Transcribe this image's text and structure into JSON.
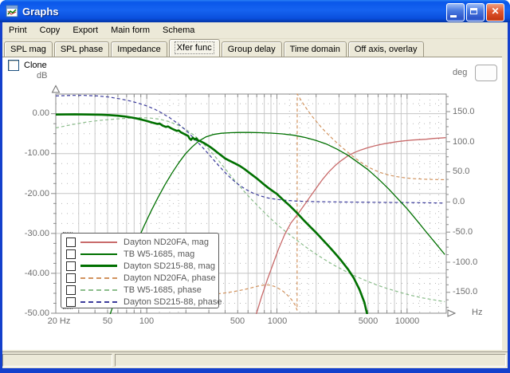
{
  "window": {
    "title": "Graphs"
  },
  "menu": {
    "items": [
      "Print",
      "Copy",
      "Export",
      "Main form",
      "Schema"
    ]
  },
  "tabs": {
    "items": [
      "SPL mag",
      "SPL phase",
      "Impedance",
      "Xfer func",
      "Group delay",
      "Time domain",
      "Off axis, overlay"
    ],
    "selected": "Xfer func",
    "selected_index": 3
  },
  "controls": {
    "clone_label": "Clone",
    "clone_checked": false
  },
  "chart_data": {
    "type": "line",
    "x_axis": {
      "unit": "Hz",
      "scale": "log",
      "min": 20,
      "max": 20000,
      "ticks": [
        {
          "label": "20 Hz",
          "value": 20
        },
        {
          "label": "50",
          "value": 50
        },
        {
          "label": "100",
          "value": 100
        },
        {
          "label": "500",
          "value": 500
        },
        {
          "label": "1000",
          "value": 1000
        },
        {
          "label": "5000",
          "value": 5000
        },
        {
          "label": "10000",
          "value": 10000
        }
      ]
    },
    "y_axis_left": {
      "unit": "dB",
      "range": [
        5,
        -50
      ],
      "ticks": [
        "0.00",
        "-10.00",
        "-20.00",
        "-30.00",
        "-40.00",
        "-50.00"
      ],
      "tick_values": [
        0,
        -10,
        -20,
        -30,
        -40,
        -50
      ]
    },
    "y_axis_right": {
      "unit": "deg",
      "range": [
        180,
        -180
      ],
      "ticks": [
        "150.0",
        "100.0",
        "50.0",
        "0.0",
        "-50.0",
        "-100.0",
        "-150.0"
      ],
      "tick_values": [
        150,
        100,
        50,
        0,
        -50,
        -100,
        -150
      ]
    },
    "grid": "on",
    "legend_position": "bottom-left-inside",
    "series": [
      {
        "name": "Dayton ND20FA, mag",
        "color": "#c86a6a",
        "style": "solid",
        "width": 1.3,
        "axis": "dB",
        "points": [
          [
            690,
            -50.5
          ],
          [
            760,
            -46
          ],
          [
            840,
            -41.8
          ],
          [
            930,
            -37.8
          ],
          [
            1030,
            -33.9
          ],
          [
            1150,
            -30.2
          ],
          [
            1280,
            -27.4
          ],
          [
            1430,
            -25.4
          ],
          [
            1600,
            -23.2
          ],
          [
            1800,
            -20.8
          ],
          [
            2000,
            -18.7
          ],
          [
            2250,
            -16.4
          ],
          [
            2500,
            -14.6
          ],
          [
            2800,
            -13
          ],
          [
            3100,
            -11.8
          ],
          [
            3500,
            -10.6
          ],
          [
            3900,
            -9.8
          ],
          [
            4400,
            -9.1
          ],
          [
            5000,
            -8.5
          ],
          [
            5700,
            -8.0
          ],
          [
            6500,
            -7.6
          ],
          [
            7400,
            -7.3
          ],
          [
            8400,
            -7.0
          ],
          [
            9500,
            -6.8
          ],
          [
            11000,
            -6.6
          ],
          [
            12500,
            -6.5
          ],
          [
            14000,
            -6.4
          ],
          [
            16000,
            -6.2
          ],
          [
            18000,
            -6.1
          ],
          [
            19800,
            -6.0
          ]
        ]
      },
      {
        "name": "TB W5-1685, mag",
        "color": "#007000",
        "style": "solid",
        "width": 1.3,
        "axis": "dB",
        "points": [
          [
            52,
            -50.5
          ],
          [
            58,
            -46
          ],
          [
            66,
            -41
          ],
          [
            75,
            -36.2
          ],
          [
            85,
            -31.8
          ],
          [
            96,
            -27.9
          ],
          [
            108,
            -24.4
          ],
          [
            122,
            -21
          ],
          [
            138,
            -17.8
          ],
          [
            156,
            -14.9
          ],
          [
            176,
            -12.3
          ],
          [
            198,
            -10.1
          ],
          [
            222,
            -8.4
          ],
          [
            250,
            -6.9
          ],
          [
            285,
            -5.8
          ],
          [
            325,
            -5.2
          ],
          [
            375,
            -4.9
          ],
          [
            440,
            -4.75
          ],
          [
            520,
            -4.7
          ],
          [
            620,
            -4.7
          ],
          [
            750,
            -4.75
          ],
          [
            900,
            -4.85
          ],
          [
            1100,
            -5.05
          ],
          [
            1350,
            -5.4
          ],
          [
            1650,
            -5.95
          ],
          [
            2000,
            -6.7
          ],
          [
            2400,
            -7.6
          ],
          [
            2900,
            -8.9
          ],
          [
            3500,
            -10.4
          ],
          [
            4200,
            -12.2
          ],
          [
            5000,
            -14
          ],
          [
            6000,
            -16.3
          ],
          [
            7200,
            -18.8
          ],
          [
            8600,
            -21.5
          ],
          [
            10000,
            -23.8
          ],
          [
            12000,
            -26.9
          ],
          [
            14000,
            -29.6
          ],
          [
            16500,
            -32.4
          ],
          [
            19500,
            -35.3
          ]
        ]
      },
      {
        "name": "Dayton SD215-88, mag",
        "color": "#007000",
        "style": "solid",
        "width": 2.6,
        "axis": "dB",
        "points": [
          [
            20,
            -0.2
          ],
          [
            28,
            -0.15
          ],
          [
            36,
            -0.2
          ],
          [
            44,
            -0.25
          ],
          [
            52,
            -0.35
          ],
          [
            60,
            -0.5
          ],
          [
            68,
            -0.7
          ],
          [
            76,
            -0.95
          ],
          [
            84,
            -1.2
          ],
          [
            92,
            -1.5
          ],
          [
            100,
            -1.8
          ],
          [
            110,
            -2.2
          ],
          [
            120,
            -2.55
          ],
          [
            126,
            -2.5
          ],
          [
            132,
            -2.95
          ],
          [
            140,
            -3.3
          ],
          [
            146,
            -3.2
          ],
          [
            154,
            -3.65
          ],
          [
            162,
            -4.0
          ],
          [
            170,
            -4.3
          ],
          [
            176,
            -4.2
          ],
          [
            184,
            -4.7
          ],
          [
            192,
            -5.0
          ],
          [
            200,
            -5.3
          ],
          [
            208,
            -5.55
          ],
          [
            213,
            -6.2
          ],
          [
            219,
            -6.55
          ],
          [
            226,
            -6.0
          ],
          [
            233,
            -6.45
          ],
          [
            240,
            -6.2
          ],
          [
            248,
            -6.7
          ],
          [
            258,
            -6.9
          ],
          [
            268,
            -7.15
          ],
          [
            280,
            -7.5
          ],
          [
            295,
            -7.95
          ],
          [
            312,
            -8.5
          ],
          [
            330,
            -9.1
          ],
          [
            350,
            -9.75
          ],
          [
            375,
            -10.5
          ],
          [
            400,
            -11.2
          ],
          [
            440,
            -11.9
          ],
          [
            480,
            -12.5
          ],
          [
            520,
            -13.1
          ],
          [
            560,
            -13.8
          ],
          [
            620,
            -14.9
          ],
          [
            700,
            -16.2
          ],
          [
            780,
            -17.5
          ],
          [
            860,
            -18.6
          ],
          [
            940,
            -19.5
          ],
          [
            1000,
            -20.1
          ],
          [
            1100,
            -21.4
          ],
          [
            1250,
            -23.0
          ],
          [
            1400,
            -24.6
          ],
          [
            1600,
            -26.6
          ],
          [
            1800,
            -28.3
          ],
          [
            2000,
            -29.8
          ],
          [
            2250,
            -31.6
          ],
          [
            2500,
            -33.2
          ],
          [
            2800,
            -35.0
          ],
          [
            3100,
            -36.7
          ],
          [
            3500,
            -38.9
          ],
          [
            3900,
            -41.2
          ],
          [
            4300,
            -44.0
          ],
          [
            4700,
            -47.3
          ],
          [
            4950,
            -50.5
          ]
        ]
      },
      {
        "name": "Dayton ND20FA, phase",
        "color": "#d2935e",
        "style": "dashed",
        "width": 1.2,
        "axis": "deg",
        "points": [
          [
            350,
            -152.5
          ],
          [
            400,
            -151
          ],
          [
            460,
            -149
          ],
          [
            530,
            -146.5
          ],
          [
            610,
            -143.5
          ],
          [
            690,
            -140.5
          ],
          [
            760,
            -138.5
          ],
          [
            820,
            -137.5
          ],
          [
            880,
            -138
          ],
          [
            950,
            -140
          ],
          [
            1030,
            -143.5
          ],
          [
            1120,
            -148.5
          ],
          [
            1210,
            -155
          ],
          [
            1300,
            -162.5
          ],
          [
            1380,
            -171
          ],
          [
            1428,
            -179.5
          ],
          [
            1432,
            179.5
          ],
          [
            1500,
            172
          ],
          [
            1600,
            162.5
          ],
          [
            1720,
            152.5
          ],
          [
            1860,
            142.5
          ],
          [
            2020,
            133
          ],
          [
            2220,
            122.5
          ],
          [
            2450,
            113
          ],
          [
            2700,
            104
          ],
          [
            3000,
            95
          ],
          [
            3400,
            85
          ],
          [
            3850,
            75.5
          ],
          [
            4350,
            67
          ],
          [
            4900,
            59.5
          ],
          [
            5600,
            53
          ],
          [
            6400,
            48
          ],
          [
            7300,
            44.5
          ],
          [
            8400,
            42
          ],
          [
            9700,
            40
          ],
          [
            11200,
            38.8
          ],
          [
            13000,
            38
          ],
          [
            15000,
            37.5
          ],
          [
            17500,
            37.2
          ],
          [
            19800,
            37
          ]
        ]
      },
      {
        "name": "TB W5-1685, phase",
        "color": "#8bbd8b",
        "style": "dashed",
        "width": 1.2,
        "axis": "deg",
        "points": [
          [
            20,
            123
          ],
          [
            26,
            128
          ],
          [
            34,
            132.5
          ],
          [
            44,
            135.5
          ],
          [
            56,
            137.5
          ],
          [
            70,
            139
          ],
          [
            88,
            140
          ],
          [
            105,
            139.5
          ],
          [
            125,
            137.5
          ],
          [
            148,
            133.5
          ],
          [
            172,
            128
          ],
          [
            200,
            120.5
          ],
          [
            232,
            110.5
          ],
          [
            268,
            98.5
          ],
          [
            310,
            84
          ],
          [
            360,
            67.5
          ],
          [
            415,
            51
          ],
          [
            480,
            34.5
          ],
          [
            550,
            19.5
          ],
          [
            640,
            4
          ],
          [
            740,
            -10
          ],
          [
            860,
            -24
          ],
          [
            1000,
            -37
          ],
          [
            1180,
            -50
          ],
          [
            1400,
            -62.5
          ],
          [
            1650,
            -74
          ],
          [
            1950,
            -85
          ],
          [
            2300,
            -95
          ],
          [
            2750,
            -105
          ],
          [
            3300,
            -114
          ],
          [
            4000,
            -123
          ],
          [
            4800,
            -130.5
          ],
          [
            5800,
            -137.5
          ],
          [
            7000,
            -143.5
          ],
          [
            8500,
            -149
          ],
          [
            10500,
            -154.5
          ],
          [
            13000,
            -159
          ],
          [
            16000,
            -162.5
          ],
          [
            19500,
            -165.5
          ]
        ]
      },
      {
        "name": "Dayton SD215-88, phase",
        "color": "#3c3c9c",
        "style": "dashed",
        "width": 1.2,
        "axis": "deg",
        "points": [
          [
            20,
            176
          ],
          [
            26,
            177
          ],
          [
            33,
            177
          ],
          [
            42,
            176
          ],
          [
            52,
            174
          ],
          [
            63,
            171
          ],
          [
            75,
            167.5
          ],
          [
            88,
            163.5
          ],
          [
            100,
            159.5
          ],
          [
            115,
            154
          ],
          [
            132,
            147
          ],
          [
            152,
            139
          ],
          [
            175,
            129.5
          ],
          [
            200,
            119
          ],
          [
            230,
            106
          ],
          [
            265,
            92
          ],
          [
            300,
            79
          ],
          [
            345,
            64
          ],
          [
            395,
            50
          ],
          [
            450,
            38
          ],
          [
            510,
            28.5
          ],
          [
            580,
            20.5
          ],
          [
            660,
            14.5
          ],
          [
            750,
            10
          ],
          [
            860,
            6.5
          ],
          [
            1000,
            4.2
          ],
          [
            1200,
            2.5
          ],
          [
            1450,
            1.4
          ],
          [
            1750,
            0.8
          ],
          [
            2100,
            0.4
          ],
          [
            2600,
            0.1
          ],
          [
            3300,
            -0.1
          ],
          [
            4200,
            -0.3
          ],
          [
            5500,
            -0.5
          ],
          [
            7000,
            -0.7
          ],
          [
            9000,
            -0.9
          ],
          [
            12000,
            -1.1
          ],
          [
            15500,
            -1.4
          ],
          [
            19500,
            -1.8
          ]
        ]
      }
    ]
  }
}
